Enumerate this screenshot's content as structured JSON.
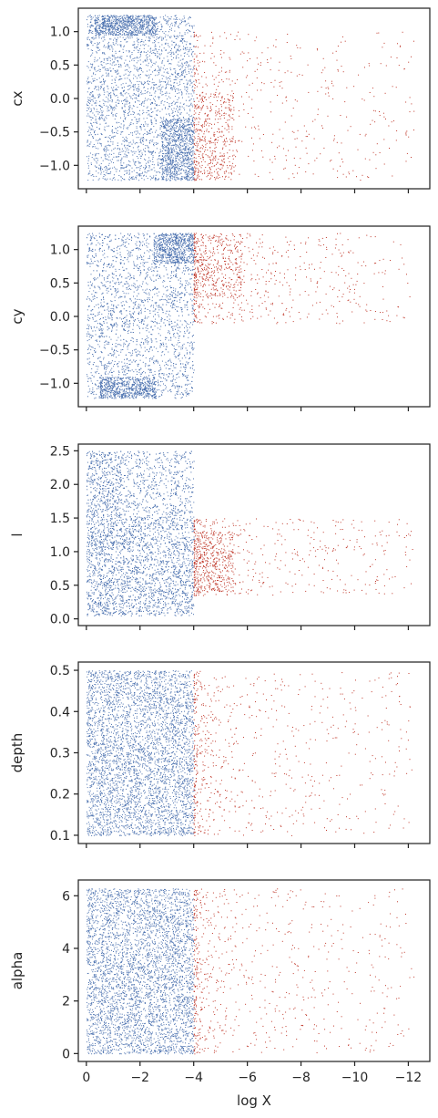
{
  "colors": {
    "blue": "#4c72b0",
    "red": "#c0392b",
    "axis": "#262626",
    "background": "#ffffff"
  },
  "chart_data": [
    {
      "type": "scatter",
      "xlabel": "",
      "ylabel": "cx",
      "xlim": [
        0.3,
        -12.8
      ],
      "ylim": [
        -1.35,
        1.35
      ],
      "xticks": [
        0,
        -2,
        -4,
        -6,
        -8,
        -10,
        -12
      ],
      "yticks": [
        -1.0,
        -0.5,
        0.0,
        0.5,
        1.0
      ],
      "ytick_labels": [
        "−1.0",
        "−0.5",
        "0.0",
        "0.5",
        "1.0"
      ],
      "xtick_labels_visible": false,
      "series": [
        {
          "color": "blue",
          "x_range": [
            0.0,
            -4.0
          ],
          "y_range": [
            -1.22,
            1.25
          ],
          "points": 4000,
          "dense_regions": [
            {
              "x": [
                -0.3,
                -2.6
              ],
              "y": [
                0.95,
                1.25
              ]
            },
            {
              "x": [
                -2.8,
                -4.0
              ],
              "y": [
                -1.22,
                -0.3
              ]
            }
          ]
        },
        {
          "color": "red",
          "x_range": [
            -4.0,
            -12.2
          ],
          "y_range": [
            -1.22,
            1.0
          ],
          "points": 900,
          "dense_regions": [
            {
              "x": [
                -4.0,
                -5.5
              ],
              "y": [
                -1.22,
                0.1
              ]
            }
          ]
        }
      ]
    },
    {
      "type": "scatter",
      "xlabel": "",
      "ylabel": "cy",
      "xlim": [
        0.3,
        -12.8
      ],
      "ylim": [
        -1.35,
        1.35
      ],
      "xticks": [
        0,
        -2,
        -4,
        -6,
        -8,
        -10,
        -12
      ],
      "yticks": [
        -1.0,
        -0.5,
        0.0,
        0.5,
        1.0
      ],
      "ytick_labels": [
        "−1.0",
        "−0.5",
        "0.0",
        "0.5",
        "1.0"
      ],
      "xtick_labels_visible": false,
      "series": [
        {
          "color": "blue",
          "x_range": [
            0.0,
            -4.0
          ],
          "y_range": [
            -1.22,
            1.25
          ],
          "points": 4000,
          "dense_regions": [
            {
              "x": [
                -2.5,
                -4.0
              ],
              "y": [
                0.8,
                1.25
              ]
            },
            {
              "x": [
                -0.5,
                -2.6
              ],
              "y": [
                -1.22,
                -0.9
              ]
            }
          ]
        },
        {
          "color": "red",
          "x_range": [
            -4.0,
            -12.2
          ],
          "y_range": [
            -0.1,
            1.25
          ],
          "points": 900,
          "dense_regions": [
            {
              "x": [
                -4.0,
                -5.8
              ],
              "y": [
                0.3,
                1.25
              ]
            }
          ]
        }
      ]
    },
    {
      "type": "scatter",
      "xlabel": "",
      "ylabel": "l",
      "xlim": [
        0.3,
        -12.8
      ],
      "ylim": [
        -0.1,
        2.6
      ],
      "xticks": [
        0,
        -2,
        -4,
        -6,
        -8,
        -10,
        -12
      ],
      "yticks": [
        0.0,
        0.5,
        1.0,
        1.5,
        2.0,
        2.5
      ],
      "ytick_labels": [
        "0.0",
        "0.5",
        "1.0",
        "1.5",
        "2.0",
        "2.5"
      ],
      "xtick_labels_visible": false,
      "series": [
        {
          "color": "blue",
          "x_range": [
            0.0,
            -4.0
          ],
          "y_range": [
            0.05,
            2.5
          ],
          "points": 4200,
          "dense_regions": [
            {
              "x": [
                0.0,
                -1.3
              ],
              "y": [
                0.05,
                2.5
              ]
            },
            {
              "x": [
                -1.3,
                -4.0
              ],
              "y": [
                0.05,
                1.5
              ]
            }
          ]
        },
        {
          "color": "red",
          "x_range": [
            -4.0,
            -12.2
          ],
          "y_range": [
            0.35,
            1.5
          ],
          "points": 900,
          "dense_regions": [
            {
              "x": [
                -4.0,
                -5.5
              ],
              "y": [
                0.4,
                1.3
              ]
            }
          ]
        }
      ]
    },
    {
      "type": "scatter",
      "xlabel": "",
      "ylabel": "depth",
      "xlim": [
        0.3,
        -12.8
      ],
      "ylim": [
        0.08,
        0.52
      ],
      "xticks": [
        0,
        -2,
        -4,
        -6,
        -8,
        -10,
        -12
      ],
      "yticks": [
        0.1,
        0.2,
        0.3,
        0.4,
        0.5
      ],
      "ytick_labels": [
        "0.1",
        "0.2",
        "0.3",
        "0.4",
        "0.5"
      ],
      "xtick_labels_visible": false,
      "series": [
        {
          "color": "blue",
          "x_range": [
            0.0,
            -4.0
          ],
          "y_range": [
            0.1,
            0.5
          ],
          "points": 4000,
          "dense_regions": []
        },
        {
          "color": "red",
          "x_range": [
            -4.0,
            -12.2
          ],
          "y_range": [
            0.1,
            0.5
          ],
          "points": 700,
          "dense_regions": []
        }
      ]
    },
    {
      "type": "scatter",
      "xlabel": "log X",
      "ylabel": "alpha",
      "xlim": [
        0.3,
        -12.8
      ],
      "ylim": [
        -0.3,
        6.6
      ],
      "xticks": [
        0,
        -2,
        -4,
        -6,
        -8,
        -10,
        -12
      ],
      "xtick_labels": [
        "0",
        "−2",
        "−4",
        "−6",
        "−8",
        "−10",
        "−12"
      ],
      "yticks": [
        0,
        2,
        4,
        6
      ],
      "ytick_labels": [
        "0",
        "2",
        "4",
        "6"
      ],
      "xtick_labels_visible": true,
      "series": [
        {
          "color": "blue",
          "x_range": [
            0.0,
            -4.0
          ],
          "y_range": [
            0.0,
            6.28
          ],
          "points": 4000,
          "dense_regions": []
        },
        {
          "color": "red",
          "x_range": [
            -4.0,
            -12.2
          ],
          "y_range": [
            0.0,
            6.28
          ],
          "points": 700,
          "dense_regions": []
        }
      ]
    }
  ]
}
